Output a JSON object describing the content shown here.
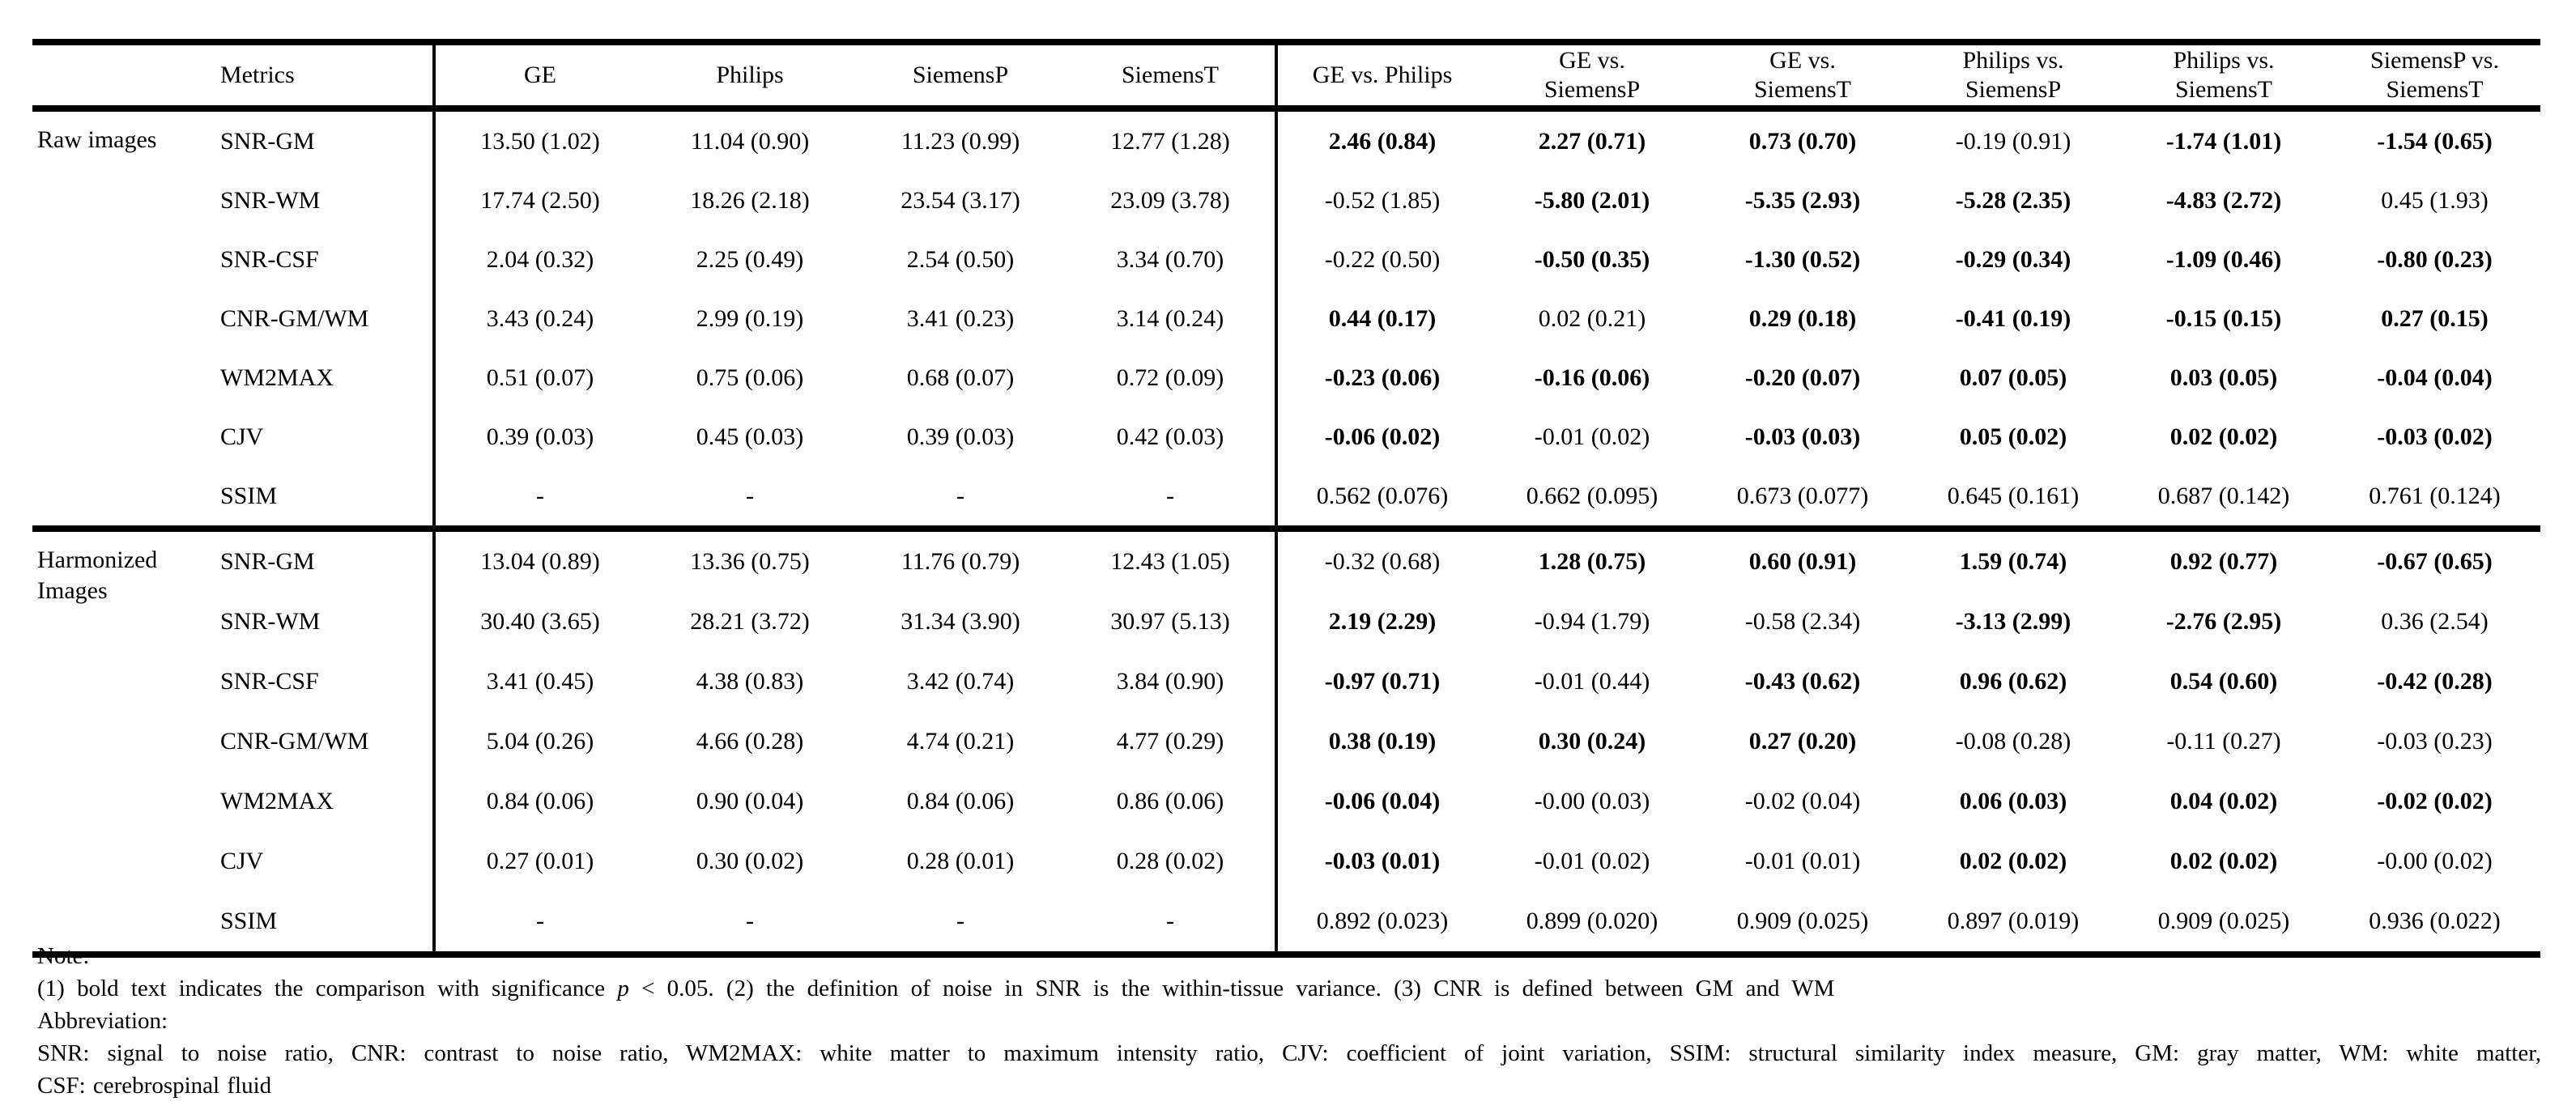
{
  "table": {
    "corner_label": "",
    "metrics_header": "Metrics",
    "scanner_headers": [
      "GE",
      "Philips",
      "SiemensP",
      "SiemensT"
    ],
    "comparison_headers": [
      "GE vs. Philips",
      "GE vs.\nSiemensP",
      "GE vs.\nSiemensT",
      "Philips vs.\nSiemensP",
      "Philips vs.\nSiemensT",
      "SiemensP vs.\nSiemensT"
    ],
    "sections": [
      {
        "label": "Raw images",
        "rows": [
          {
            "metric": "SNR-GM",
            "scanner_values": [
              "13.50 (1.02)",
              "11.04 (0.90)",
              "11.23 (0.99)",
              "12.77 (1.28)"
            ],
            "comparisons": [
              {
                "text": "2.46 (0.84)",
                "bold": true
              },
              {
                "text": "2.27 (0.71)",
                "bold": true
              },
              {
                "text": "0.73 (0.70)",
                "bold": true
              },
              {
                "text": "-0.19 (0.91)",
                "bold": false
              },
              {
                "text": "-1.74 (1.01)",
                "bold": true
              },
              {
                "text": "-1.54 (0.65)",
                "bold": true
              }
            ]
          },
          {
            "metric": "SNR-WM",
            "scanner_values": [
              "17.74 (2.50)",
              "18.26 (2.18)",
              "23.54 (3.17)",
              "23.09 (3.78)"
            ],
            "comparisons": [
              {
                "text": "-0.52 (1.85)",
                "bold": false
              },
              {
                "text": "-5.80 (2.01)",
                "bold": true
              },
              {
                "text": "-5.35 (2.93)",
                "bold": true
              },
              {
                "text": "-5.28 (2.35)",
                "bold": true
              },
              {
                "text": "-4.83 (2.72)",
                "bold": true
              },
              {
                "text": "0.45 (1.93)",
                "bold": false
              }
            ]
          },
          {
            "metric": "SNR-CSF",
            "scanner_values": [
              "2.04 (0.32)",
              "2.25 (0.49)",
              "2.54 (0.50)",
              "3.34 (0.70)"
            ],
            "comparisons": [
              {
                "text": "-0.22 (0.50)",
                "bold": false
              },
              {
                "text": "-0.50 (0.35)",
                "bold": true
              },
              {
                "text": "-1.30 (0.52)",
                "bold": true
              },
              {
                "text": "-0.29 (0.34)",
                "bold": true
              },
              {
                "text": "-1.09 (0.46)",
                "bold": true
              },
              {
                "text": "-0.80 (0.23)",
                "bold": true
              }
            ]
          },
          {
            "metric": "CNR-GM/WM",
            "scanner_values": [
              "3.43 (0.24)",
              "2.99 (0.19)",
              "3.41 (0.23)",
              "3.14 (0.24)"
            ],
            "comparisons": [
              {
                "text": "0.44 (0.17)",
                "bold": true
              },
              {
                "text": "0.02 (0.21)",
                "bold": false
              },
              {
                "text": "0.29 (0.18)",
                "bold": true
              },
              {
                "text": "-0.41 (0.19)",
                "bold": true
              },
              {
                "text": "-0.15 (0.15)",
                "bold": true
              },
              {
                "text": "0.27 (0.15)",
                "bold": true
              }
            ]
          },
          {
            "metric": "WM2MAX",
            "scanner_values": [
              "0.51 (0.07)",
              "0.75 (0.06)",
              "0.68 (0.07)",
              "0.72 (0.09)"
            ],
            "comparisons": [
              {
                "text": "-0.23 (0.06)",
                "bold": true
              },
              {
                "text": "-0.16 (0.06)",
                "bold": true
              },
              {
                "text": "-0.20 (0.07)",
                "bold": true
              },
              {
                "text": "0.07 (0.05)",
                "bold": true
              },
              {
                "text": "0.03 (0.05)",
                "bold": true
              },
              {
                "text": "-0.04 (0.04)",
                "bold": true
              }
            ]
          },
          {
            "metric": "CJV",
            "scanner_values": [
              "0.39 (0.03)",
              "0.45 (0.03)",
              "0.39 (0.03)",
              "0.42 (0.03)"
            ],
            "comparisons": [
              {
                "text": "-0.06 (0.02)",
                "bold": true
              },
              {
                "text": "-0.01 (0.02)",
                "bold": false
              },
              {
                "text": "-0.03 (0.03)",
                "bold": true
              },
              {
                "text": "0.05 (0.02)",
                "bold": true
              },
              {
                "text": "0.02 (0.02)",
                "bold": true
              },
              {
                "text": "-0.03 (0.02)",
                "bold": true
              }
            ]
          },
          {
            "metric": "SSIM",
            "scanner_values": [
              "-",
              "-",
              "-",
              "-"
            ],
            "comparisons": [
              {
                "text": "0.562 (0.076)",
                "bold": false
              },
              {
                "text": "0.662 (0.095)",
                "bold": false
              },
              {
                "text": "0.673 (0.077)",
                "bold": false
              },
              {
                "text": "0.645 (0.161)",
                "bold": false
              },
              {
                "text": "0.687 (0.142)",
                "bold": false
              },
              {
                "text": "0.761 (0.124)",
                "bold": false
              }
            ]
          }
        ]
      },
      {
        "label": "Harmonized Images",
        "rows": [
          {
            "metric": "SNR-GM",
            "scanner_values": [
              "13.04 (0.89)",
              "13.36 (0.75)",
              "11.76 (0.79)",
              "12.43 (1.05)"
            ],
            "comparisons": [
              {
                "text": "-0.32 (0.68)",
                "bold": false
              },
              {
                "text": "1.28 (0.75)",
                "bold": true
              },
              {
                "text": "0.60 (0.91)",
                "bold": true
              },
              {
                "text": "1.59 (0.74)",
                "bold": true
              },
              {
                "text": "0.92 (0.77)",
                "bold": true
              },
              {
                "text": "-0.67 (0.65)",
                "bold": true
              }
            ]
          },
          {
            "metric": "SNR-WM",
            "scanner_values": [
              "30.40 (3.65)",
              "28.21 (3.72)",
              "31.34 (3.90)",
              "30.97 (5.13)"
            ],
            "comparisons": [
              {
                "text": "2.19 (2.29)",
                "bold": true
              },
              {
                "text": "-0.94 (1.79)",
                "bold": false
              },
              {
                "text": "-0.58 (2.34)",
                "bold": false
              },
              {
                "text": "-3.13 (2.99)",
                "bold": true
              },
              {
                "text": "-2.76 (2.95)",
                "bold": true
              },
              {
                "text": "0.36 (2.54)",
                "bold": false
              }
            ]
          },
          {
            "metric": "SNR-CSF",
            "scanner_values": [
              "3.41 (0.45)",
              "4.38 (0.83)",
              "3.42 (0.74)",
              "3.84 (0.90)"
            ],
            "comparisons": [
              {
                "text": "-0.97 (0.71)",
                "bold": true
              },
              {
                "text": "-0.01 (0.44)",
                "bold": false
              },
              {
                "text": "-0.43 (0.62)",
                "bold": true
              },
              {
                "text": "0.96 (0.62)",
                "bold": true
              },
              {
                "text": "0.54 (0.60)",
                "bold": true
              },
              {
                "text": "-0.42 (0.28)",
                "bold": true
              }
            ]
          },
          {
            "metric": "CNR-GM/WM",
            "scanner_values": [
              "5.04 (0.26)",
              "4.66 (0.28)",
              "4.74 (0.21)",
              "4.77 (0.29)"
            ],
            "comparisons": [
              {
                "text": "0.38 (0.19)",
                "bold": true
              },
              {
                "text": "0.30 (0.24)",
                "bold": true
              },
              {
                "text": "0.27 (0.20)",
                "bold": true
              },
              {
                "text": "-0.08 (0.28)",
                "bold": false
              },
              {
                "text": "-0.11 (0.27)",
                "bold": false
              },
              {
                "text": "-0.03 (0.23)",
                "bold": false
              }
            ]
          },
          {
            "metric": "WM2MAX",
            "scanner_values": [
              "0.84 (0.06)",
              "0.90 (0.04)",
              "0.84 (0.06)",
              "0.86 (0.06)"
            ],
            "comparisons": [
              {
                "text": "-0.06 (0.04)",
                "bold": true
              },
              {
                "text": "-0.00 (0.03)",
                "bold": false
              },
              {
                "text": "-0.02 (0.04)",
                "bold": false
              },
              {
                "text": "0.06 (0.03)",
                "bold": true
              },
              {
                "text": "0.04 (0.02)",
                "bold": true
              },
              {
                "text": "-0.02 (0.02)",
                "bold": true
              }
            ]
          },
          {
            "metric": "CJV",
            "scanner_values": [
              "0.27 (0.01)",
              "0.30 (0.02)",
              "0.28 (0.01)",
              "0.28 (0.02)"
            ],
            "comparisons": [
              {
                "text": "-0.03 (0.01)",
                "bold": true
              },
              {
                "text": "-0.01 (0.02)",
                "bold": false
              },
              {
                "text": "-0.01 (0.01)",
                "bold": false
              },
              {
                "text": "0.02 (0.02)",
                "bold": true
              },
              {
                "text": "0.02 (0.02)",
                "bold": true
              },
              {
                "text": "-0.00 (0.02)",
                "bold": false
              }
            ]
          },
          {
            "metric": "SSIM",
            "scanner_values": [
              "-",
              "-",
              "-",
              "-"
            ],
            "comparisons": [
              {
                "text": "0.892 (0.023)",
                "bold": false
              },
              {
                "text": "0.899 (0.020)",
                "bold": false
              },
              {
                "text": "0.909 (0.025)",
                "bold": false
              },
              {
                "text": "0.897 (0.019)",
                "bold": false
              },
              {
                "text": "0.909 (0.025)",
                "bold": false
              },
              {
                "text": "0.936 (0.022)",
                "bold": false
              }
            ]
          }
        ]
      }
    ]
  },
  "notes": {
    "note_label": "Note:",
    "body_pre": "(1) bold text indicates the comparison with significance ",
    "body_italic": "p",
    "body_post": " < 0.05. (2) the definition of noise in SNR is the within-tissue variance. (3) CNR is defined between GM and WM",
    "abbreviation_label": "Abbreviation:",
    "abbreviation_line1": "SNR: signal to noise ratio, CNR: contrast to noise ratio, WM2MAX: white matter to maximum intensity ratio, CJV: coefficient of joint variation, SSIM: structural similarity index measure, GM: gray matter, WM: white matter,",
    "abbreviation_line2": "CSF: cerebrospinal fluid"
  }
}
